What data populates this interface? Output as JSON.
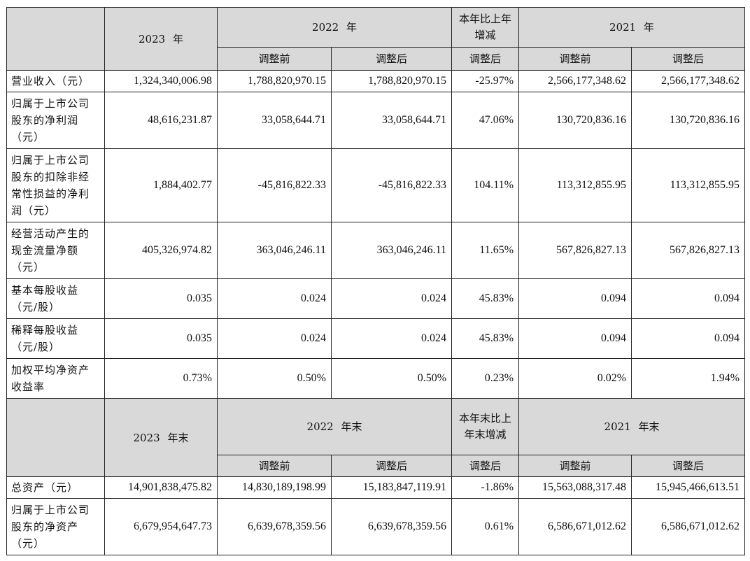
{
  "income_header": {
    "year_2023": "2023 年",
    "year_2022": "2022 年",
    "change": "本年比上年增减",
    "year_2021": "2021 年",
    "sub_before": "调整前",
    "sub_after": "调整后"
  },
  "income_rows": [
    {
      "label": "营业收入（元）",
      "v2023": "1,324,340,006.98",
      "v2022_before": "1,788,820,970.15",
      "v2022_after": "1,788,820,970.15",
      "change": "-25.97%",
      "v2021_before": "2,566,177,348.62",
      "v2021_after": "2,566,177,348.62"
    },
    {
      "label": "归属于上市公司股东的净利润（元）",
      "v2023": "48,616,231.87",
      "v2022_before": "33,058,644.71",
      "v2022_after": "33,058,644.71",
      "change": "47.06%",
      "v2021_before": "130,720,836.16",
      "v2021_after": "130,720,836.16"
    },
    {
      "label": "归属于上市公司股东的扣除非经常性损益的净利润（元）",
      "v2023": "1,884,402.77",
      "v2022_before": "-45,816,822.33",
      "v2022_after": "-45,816,822.33",
      "change": "104.11%",
      "v2021_before": "113,312,855.95",
      "v2021_after": "113,312,855.95"
    },
    {
      "label": "经营活动产生的现金流量净额（元）",
      "v2023": "405,326,974.82",
      "v2022_before": "363,046,246.11",
      "v2022_after": "363,046,246.11",
      "change": "11.65%",
      "v2021_before": "567,826,827.13",
      "v2021_after": "567,826,827.13"
    },
    {
      "label": "基本每股收益（元/股）",
      "v2023": "0.035",
      "v2022_before": "0.024",
      "v2022_after": "0.024",
      "change": "45.83%",
      "v2021_before": "0.094",
      "v2021_after": "0.094"
    },
    {
      "label": "稀释每股收益（元/股）",
      "v2023": "0.035",
      "v2022_before": "0.024",
      "v2022_after": "0.024",
      "change": "45.83%",
      "v2021_before": "0.094",
      "v2021_after": "0.094"
    },
    {
      "label": "加权平均净资产收益率",
      "v2023": "0.73%",
      "v2022_before": "0.50%",
      "v2022_after": "0.50%",
      "change": "0.23%",
      "v2021_before": "0.02%",
      "v2021_after": "1.94%"
    }
  ],
  "balance_header": {
    "year_2023": "2023 年末",
    "year_2022": "2022 年末",
    "change": "本年末比上年末增减",
    "year_2021": "2021 年末",
    "sub_before": "调整前",
    "sub_after": "调整后"
  },
  "balance_rows": [
    {
      "label": "总资产（元）",
      "v2023": "14,901,838,475.82",
      "v2022_before": "14,830,189,198.99",
      "v2022_after": "15,183,847,119.91",
      "change": "-1.86%",
      "v2021_before": "15,563,088,317.48",
      "v2021_after": "15,945,466,613.51"
    },
    {
      "label": "归属于上市公司股东的净资产（元）",
      "v2023": "6,679,954,647.73",
      "v2022_before": "6,639,678,359.56",
      "v2022_after": "6,639,678,359.56",
      "change": "0.61%",
      "v2021_before": "6,586,671,012.62",
      "v2021_after": "6,586,671,012.62"
    }
  ]
}
